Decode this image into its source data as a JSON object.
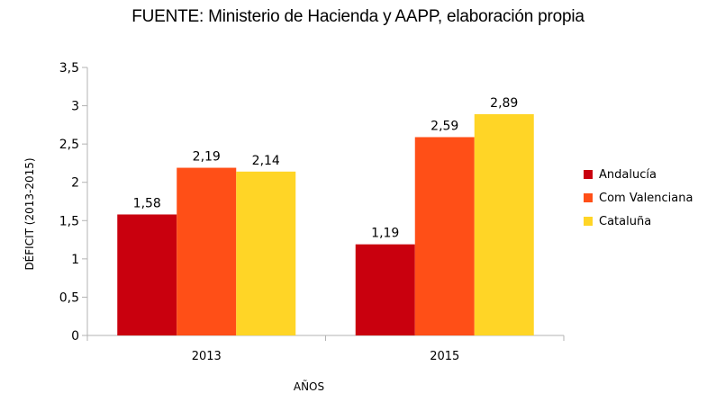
{
  "chart_data": {
    "type": "bar",
    "title": "FUENTE: Ministerio de Hacienda y AAPP, elaboración propia",
    "xlabel": "AÑOS",
    "ylabel": "DÉFICIT (2013-2015)",
    "categories": [
      "2013",
      "2015"
    ],
    "ylim": [
      0,
      3.5
    ],
    "yticks": [
      "0",
      "0,5",
      "1",
      "1,5",
      "2",
      "2,5",
      "3",
      "3,5"
    ],
    "series": [
      {
        "name": "Andalucía",
        "color": "#c9000e",
        "values": [
          1.58,
          1.19
        ],
        "labels": [
          "1,58",
          "1,19"
        ]
      },
      {
        "name": "Com Valenciana",
        "color": "#ff4f17",
        "values": [
          2.19,
          2.59
        ],
        "labels": [
          "2,19",
          "2,59"
        ]
      },
      {
        "name": "Cataluña",
        "color": "#ffd526",
        "values": [
          2.14,
          2.89
        ],
        "labels": [
          "2,14",
          "2,89"
        ]
      }
    ],
    "legend_position": "right",
    "grid": false
  }
}
